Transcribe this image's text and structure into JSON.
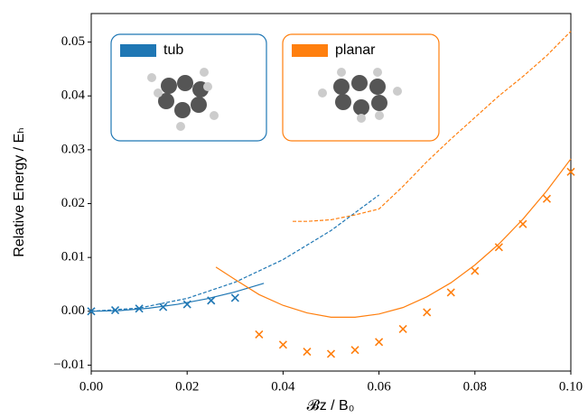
{
  "chart_data": {
    "type": "line",
    "xlabel": "𝓑z / B₀",
    "ylabel": "Relative Energy / Eₕ",
    "xlim": [
      0,
      0.1
    ],
    "ylim": [
      -0.0111,
      0.0553
    ],
    "xticks": [
      {
        "value": 0,
        "label": "0.00"
      },
      0.02,
      0.04,
      0.06,
      0.08,
      {
        "value": 0.1,
        "label": "0.10"
      }
    ],
    "yticks": [
      {
        "value": -0.01,
        "label": "−0.01"
      },
      {
        "value": 0,
        "label": "0.00"
      },
      0.01,
      0.02,
      0.03,
      0.04,
      0.05
    ],
    "legend": [
      {
        "name": "tub",
        "color": "#1f77b4"
      },
      {
        "name": "planar",
        "color": "#ff7f0e"
      }
    ],
    "series": [
      {
        "style": "marker",
        "color": "#1f77b4",
        "x": [
          0,
          0.005,
          0.01,
          0.015,
          0.02,
          0.025,
          0.03
        ],
        "values": [
          0,
          0.0002,
          0.0005,
          0.0008,
          0.0013,
          0.002,
          0.0025
        ]
      },
      {
        "style": "solid",
        "color": "#1f77b4",
        "x": [
          0,
          0.006,
          0.012,
          0.018,
          0.024,
          0.03,
          0.036
        ],
        "values": [
          0,
          0.00014,
          0.00058,
          0.0013,
          0.0023,
          0.0036,
          0.0052
        ]
      },
      {
        "style": "dashed",
        "color": "#1f77b4",
        "x": [
          0,
          0.01,
          0.02,
          0.03,
          0.04,
          0.05,
          0.06
        ],
        "values": [
          0,
          0.0006,
          0.0024,
          0.0054,
          0.0096,
          0.015,
          0.0216
        ]
      },
      {
        "style": "marker",
        "color": "#ff7f0e",
        "x": [
          0.035,
          0.04,
          0.045,
          0.05,
          0.055,
          0.06,
          0.065,
          0.07,
          0.075,
          0.08,
          0.085,
          0.09,
          0.095,
          0.1
        ],
        "values": [
          -0.0043,
          -0.0062,
          -0.0075,
          -0.0079,
          -0.0072,
          -0.0057,
          -0.0033,
          -0.0002,
          0.0035,
          0.0075,
          0.0119,
          0.0162,
          0.0209,
          0.0259
        ]
      },
      {
        "style": "solid",
        "color": "#ff7f0e",
        "x": [
          0.026,
          0.03,
          0.035,
          0.04,
          0.045,
          0.05,
          0.055,
          0.06,
          0.065,
          0.07,
          0.075,
          0.08,
          0.085,
          0.09,
          0.095,
          0.1
        ],
        "values": [
          0.0082,
          0.0059,
          0.0031,
          0.0011,
          -0.0003,
          -0.0011,
          -0.0011,
          -0.0005,
          0.0007,
          0.0027,
          0.0053,
          0.0086,
          0.0125,
          0.0171,
          0.0224,
          0.0283
        ]
      },
      {
        "style": "dashed",
        "color": "#ff7f0e",
        "x": [
          0.042,
          0.045,
          0.05,
          0.055,
          0.06,
          0.065,
          0.07,
          0.075,
          0.08,
          0.085,
          0.09,
          0.095,
          0.1
        ],
        "values": [
          0.0167,
          0.0167,
          0.017,
          0.0179,
          0.019,
          0.0232,
          0.0278,
          0.032,
          0.036,
          0.04,
          0.0436,
          0.0475,
          0.052
        ]
      }
    ]
  }
}
